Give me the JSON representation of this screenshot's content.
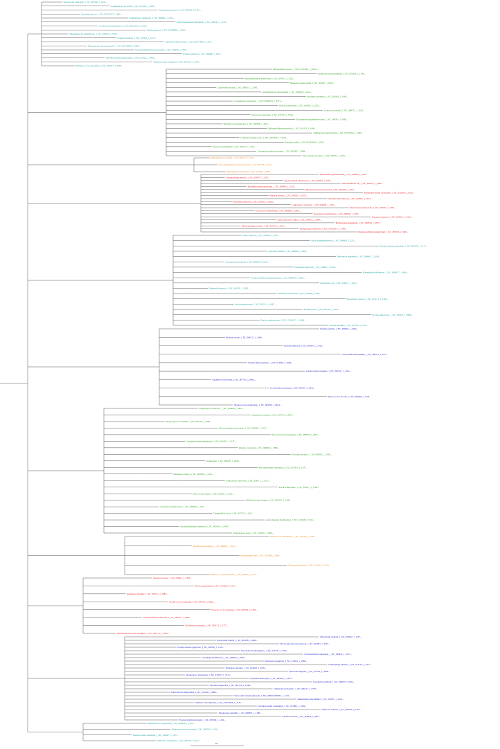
{
  "colors": {
    "branch": "#555555",
    "teal": "#1a9e9e",
    "green": "#2a9a1a",
    "orange": "#f08a24",
    "red": "#e8191c",
    "blue": "#2222cc",
    "purple": "#8a2aa8"
  },
  "scale_bar": {
    "label": "0.1"
  },
  "tree": {
    "clades": [
      {
        "name": "clade-top-teal",
        "color": "teal",
        "labels": [
          "Azotobacter vinelandii_1_NC_012560_1_1847...",
          "Acinetobacter sp. strain_1_NC_021814_1_2298...",
          "Pseudomonas stutzeri_1_NC_018028_1_3187...",
          "Pseudomonas_sp_1_NZ_CP011567_1_4001...",
          "Xanthomonas campestris_1_NC_003902_1_2214...",
          "Stenotrophomonas maltophilia_1_NC_010943_1_1133...",
          "Lysobacter enzymogenes_1_NZ_CP013140_1_5012...",
          "Dyella japonica_1_NZ_CP008884_1_0921...",
          "Rhodanobacter denitrificans_1_NC_020541_1_3328...",
          "Frateuria aurantia_1_NC_017033_1_2217...",
          "Luteibacter rhizovicinus_1_NZ_CP017480_1_1102...",
          "Thermomonas hydrothermalis_1_NZ_CP010400_1_0087...",
          "Pseudoxanthomonas suwonensis_1_NC_014924_1_2765...",
          "Xylella fastidiosa_1_NC_002488_1_1551...",
          "Halothiobacillus neapolitanus_1_NC_013422_1_0442...",
          "Thiomicrospira crunogena_1_NC_007520_1_1278...",
          "Methylococcus capsulatus_1_NC_002977_1_2093..."
        ]
      },
      {
        "name": "clade-green-1",
        "color": "green",
        "labels": [
          "Burkholderia cepacia_1_NZ_CP012981_1_0032...",
          "Burkholderia pseudomallei_1_NC_006350_1_1144...",
          "Paraburkholderia xenovorans_1_NC_007951_1_3321...",
          "Ralstonia solanacearum_1_NC_003295_1_0876...",
          "Cupriavidus necator_1_NC_008313_1_2540...",
          "Achromobacter xylosoxidans_1_NC_014640_1_4412...",
          "Bordetella pertussis_1_NC_002929_1_1983...",
          "Comamonas testosteroni_1_NZ_CP006704_1_3071...",
          "Delftia acidovorans_1_NC_010002_1_2218...",
          "Acidovorax citrulli_1_NC_008752_1_1610...",
          "Variovorax paradoxus_1_NC_012791_1_5529...",
          "Polaromonas naphthalenivorans_1_NC_008781_1_0993...",
          "Rhodoferax ferrireducens_1_NC_007908_1_2817...",
          "Herbaspirillum seropedicae_1_NC_014323_1_1406...",
          "Janthinobacterium lividum_1_NZ_CP015992_1_3390...",
          "Collimonas fungivorans_1_NZ_CP013232_1_0718...",
          "Massilia putida_1_NZ_CP019038_1_2236...",
          "Neisseria meningitidis_1_NC_003112_1_1145...",
          "Chromobacterium violaceum_1_NC_005085_1_2984...",
          "Nitrosomonas europaea_1_NC_004757_1_0651..."
        ]
      },
      {
        "name": "clade-orange-1",
        "color": "orange",
        "labels": [
          "Sphingomonas wittichii_1_NC_009511_1_1722...",
          "Novosphingobium aromaticivorans_1_NC_007794_1_2013...",
          "Sphingobium japonicum_1_NC_014006_1_0881..."
        ]
      },
      {
        "name": "clade-red-1",
        "color": "red",
        "labels": [
          "Rhizobium leguminosarum_1_NC_008380_1_3352...",
          "Sinorhizobium meliloti_1_NC_003047_1_1219...",
          "Agrobacterium tumefaciens_1_NC_003062_1_2478...",
          "Mesorhizobium loti_1_NC_002678_1_4460...",
          "Bradyrhizobium japonicum_1_NC_004463_1_5118...",
          "Rhodopseudomonas palustris_1_NC_005296_1_2207...",
          "Methylobacterium extorquens_1_NC_012808_1_3019...",
          "Brucella abortus_1_NC_006932_1_0553...",
          "Ochrobactrum anthropi_1_NC_009667_1_1874...",
          "Bartonella henselae_1_NC_005956_1_0662...",
          "Caulobacter crescentus_1_NC_002696_1_2751...",
          "Rhodobacter sphaeroides_1_NC_007493_1_1340...",
          "Paracoccus denitrificans_1_NC_008686_1_2099...",
          "Roseobacter denitrificans_1_NC_008209_1_3187...",
          "Ruegeria pomeroyi_1_NC_003911_1_1563...",
          "Dinoroseobacter shibae_1_NC_009952_1_2804...",
          "Hyphomonas neptunium_1_NC_008358_1_0975...",
          "Rhodospirillum rubrum_1_NC_007643_1_2311...",
          "Azospirillum brasilense_1_NZ_CP012914_1_1789...",
          "Magnetospirillum magneticum_1_NC_007626_1_3402..."
        ]
      },
      {
        "name": "clade-teal-2",
        "color": "teal",
        "labels": [
          "Vibrio cholerae_1_NC_002505_1_1193...",
          "Vibrio parahaemolyticus_1_NC_004603_1_2251...",
          "Photobacterium profundum_1_NC_006370_1_3117...",
          "Aliivibrio fischeri_1_NC_006840_1_1408...",
          "Shewanella oneidensis_1_NC_004347_1_2634...",
          "Aeromonas hydrophila_1_NC_008570_1_1855...",
          "Pasteurella multocida_1_NC_002663_1_0722...",
          "Haemophilus influenzae_1_NC_000907_1_1064...",
          "Actinobacillus pleuropneumoniae_1_NC_009053_1_1509...",
          "Escherichia coli_1_NC_000913_1_2215...",
          "Salmonella enterica_1_NC_003197_1_2876...",
          "Klebsiella pneumoniae_1_NC_016845_1_3301...",
          "Enterobacter cloacae_1_NC_014121_1_2790...",
          "Serratia marcescens_1_NC_020211_1_1447...",
          "Yersinia pestis_1_NC_003143_1_3015...",
          "Erwinia amylovora_1_NC_013971_1_0986...",
          "Pantoea agglomerans_1_NZ_CP014127_1_2368...",
          "Proteus mirabilis_1_NC_010554_1_1705..."
        ]
      },
      {
        "name": "clade-blue-1",
        "color": "blue",
        "labels": [
          "Bacillus subtilis_1_NC_000964_1_2004...",
          "Bacillus cereus_1_NC_004722_1_3188...",
          "Bacillus anthracis_1_NC_003997_1_1416...",
          "Geobacillus kaustophilus_1_NC_006510_1_2277...",
          "Paenibacillus polymyxa_1_NC_014483_1_3509...",
          "Listeria monocytogenes_1_NC_003210_1_1122...",
          "Staphylococcus aureus_1_NC_007795_1_0865...",
          "Lactobacillus plantarum_1_NC_004567_1_2631...",
          "Enterococcus faecalis_1_NC_004668_1_1748...",
          "Streptococcus pneumoniae_1_NC_003028_1_0924..."
        ]
      },
      {
        "name": "clade-green-2",
        "color": "green",
        "labels": [
          "Streptomyces coelicolor_1_NC_003888_1_4451...",
          "Streptomyces griseus_1_NC_010572_1_3872...",
          "Streptomyces avermitilis_1_NC_003155_1_2960...",
          "Mycobacterium tuberculosis_1_NC_000962_1_1671...",
          "Mycobacterium smegmatis_1_NC_008596_1_2854...",
          "Corynebacterium glutamicum_1_NC_003450_1_1237...",
          "Rhodococcus jostii_1_NC_008268_1_3806...",
          "Nocardia farcinica_1_NC_006361_1_2199...",
          "Frankia alni_1_NC_008278_1_4028...",
          "Micromonospora aurantiaca_1_NC_014391_1_3147...",
          "Salinispora tropica_1_NC_009380_1_1916...",
          "Arthrobacter aurescens_1_NC_008711_1_2573...",
          "Kocuria rhizophila_1_NC_010617_1_0784...",
          "Micrococcus luteus_1_NC_012803_1_1052...",
          "Bifidobacterium longum_1_NC_004307_1_1389...",
          "Propionibacterium acnes_1_NC_006085_1_1677...",
          "Thermobifida fusca_1_NC_007333_1_2012...",
          "Amycolatopsis mediterranei_1_NC_014318_1_5216...",
          "Saccharopolyspora erythraea_1_NC_009142_1_4478...",
          "Kitasatospora setae_1_NC_016109_1_3395..."
        ]
      },
      {
        "name": "clade-orange-2",
        "color": "orange",
        "labels": [
          "Deinococcus radiodurans_1_NC_001263_1_1487...",
          "Thermus thermophilus_1_NC_006461_1_0921...",
          "Meiothermus ruber_1_NC_013946_1_1864...",
          "Truepera radiovictrix_1_NC_014221_1_2230...",
          "Deinococcus geothermalis_1_NC_008025_1_1511..."
        ]
      },
      {
        "name": "clade-red-2",
        "color": "red",
        "labels": [
          "Synechocystis sp_1_NC_000911_1_2318...",
          "Nostoc punctiforme_1_NC_010628_1_4417...",
          "Anabaena variabilis_1_NC_007413_1_3580...",
          "Prochlorococcus marinus_1_NC_005042_1_0822...",
          "Synechococcus elongatus_1_NC_007604_1_1309...",
          "Trichodesmium erythraeum_1_NC_008312_1_2946...",
          "Gloeobacter violaceus_1_NC_005125_1_1775...",
          "Thermosynechococcus elongatus_1_NC_004113_1_1036..."
        ]
      },
      {
        "name": "clade-blue-2",
        "color": "blue",
        "labels": [
          "Chlorobium tepidum_1_NC_002932_1_1457...",
          "Bacteroides fragilis_1_NC_003228_1_2684...",
          "Bacteroides thetaiotaomicron_1_NC_004663_1_3925...",
          "Porphyromonas gingivalis_1_NC_002950_1_1163...",
          "Prevotella melaninogenica_1_NC_014370_1_1526...",
          "Flavobacterium johnsoniae_1_NC_009441_1_3317...",
          "Cytophaga hutchinsonii_1_NC_008255_1_2509...",
          "Pedobacter heparinus_1_NC_013061_1_2882...",
          "Chitinophaga pinensis_1_NC_013132_1_4311...",
          "Flexibacter litoralis_1_NC_018018_1_2076...",
          "Spirosoma linguale_1_NC_013730_1_3698...",
          "Dyadobacter fermentans_1_NC_013037_1_3215...",
          "Leptospira interrogans_1_NC_004342_1_2237...",
          "Treponema pallidum_1_NC_000919_1_0612...",
          "Borrelia burgdorferi_1_NC_001318_1_0548...",
          "Chlamydia trachomatis_1_NC_000117_1_0703...",
          "Planctomyces limnophilus_1_NC_014148_1_2860...",
          "Verrucomicrobium spinosum_1_NZ_ABIZ01000001_1_3104...",
          "Akkermansia muciniphila_1_NC_010655_1_1221...",
          "Gemmata obscuriglobus_1_NZ_CP025958_1_4730...",
          "Acidobacterium capsulatum_1_NC_012483_1_1994...",
          "Solibacter usitatus_1_NC_008536_1_5102...",
          "Thermotoga maritima_1_NC_000853_1_1188...",
          "Aquifex aeolicus_1_NC_000918_1_0897...",
          "Fusobacterium nucleatum_1_NC_003454_1_1432..."
        ]
      },
      {
        "name": "clade-outgroup",
        "color": "teal",
        "labels": [
          "Methanococcus jannaschii_1_NC_000909_1_1204...",
          "Methanosarcina acetivorans_1_NC_003552_1_3911...",
          "Halobacterium salinarum_1_NC_002607_1_1477...",
          "Sulfolobus solfataricus_1_NC_002754_1_2012..."
        ]
      }
    ]
  }
}
